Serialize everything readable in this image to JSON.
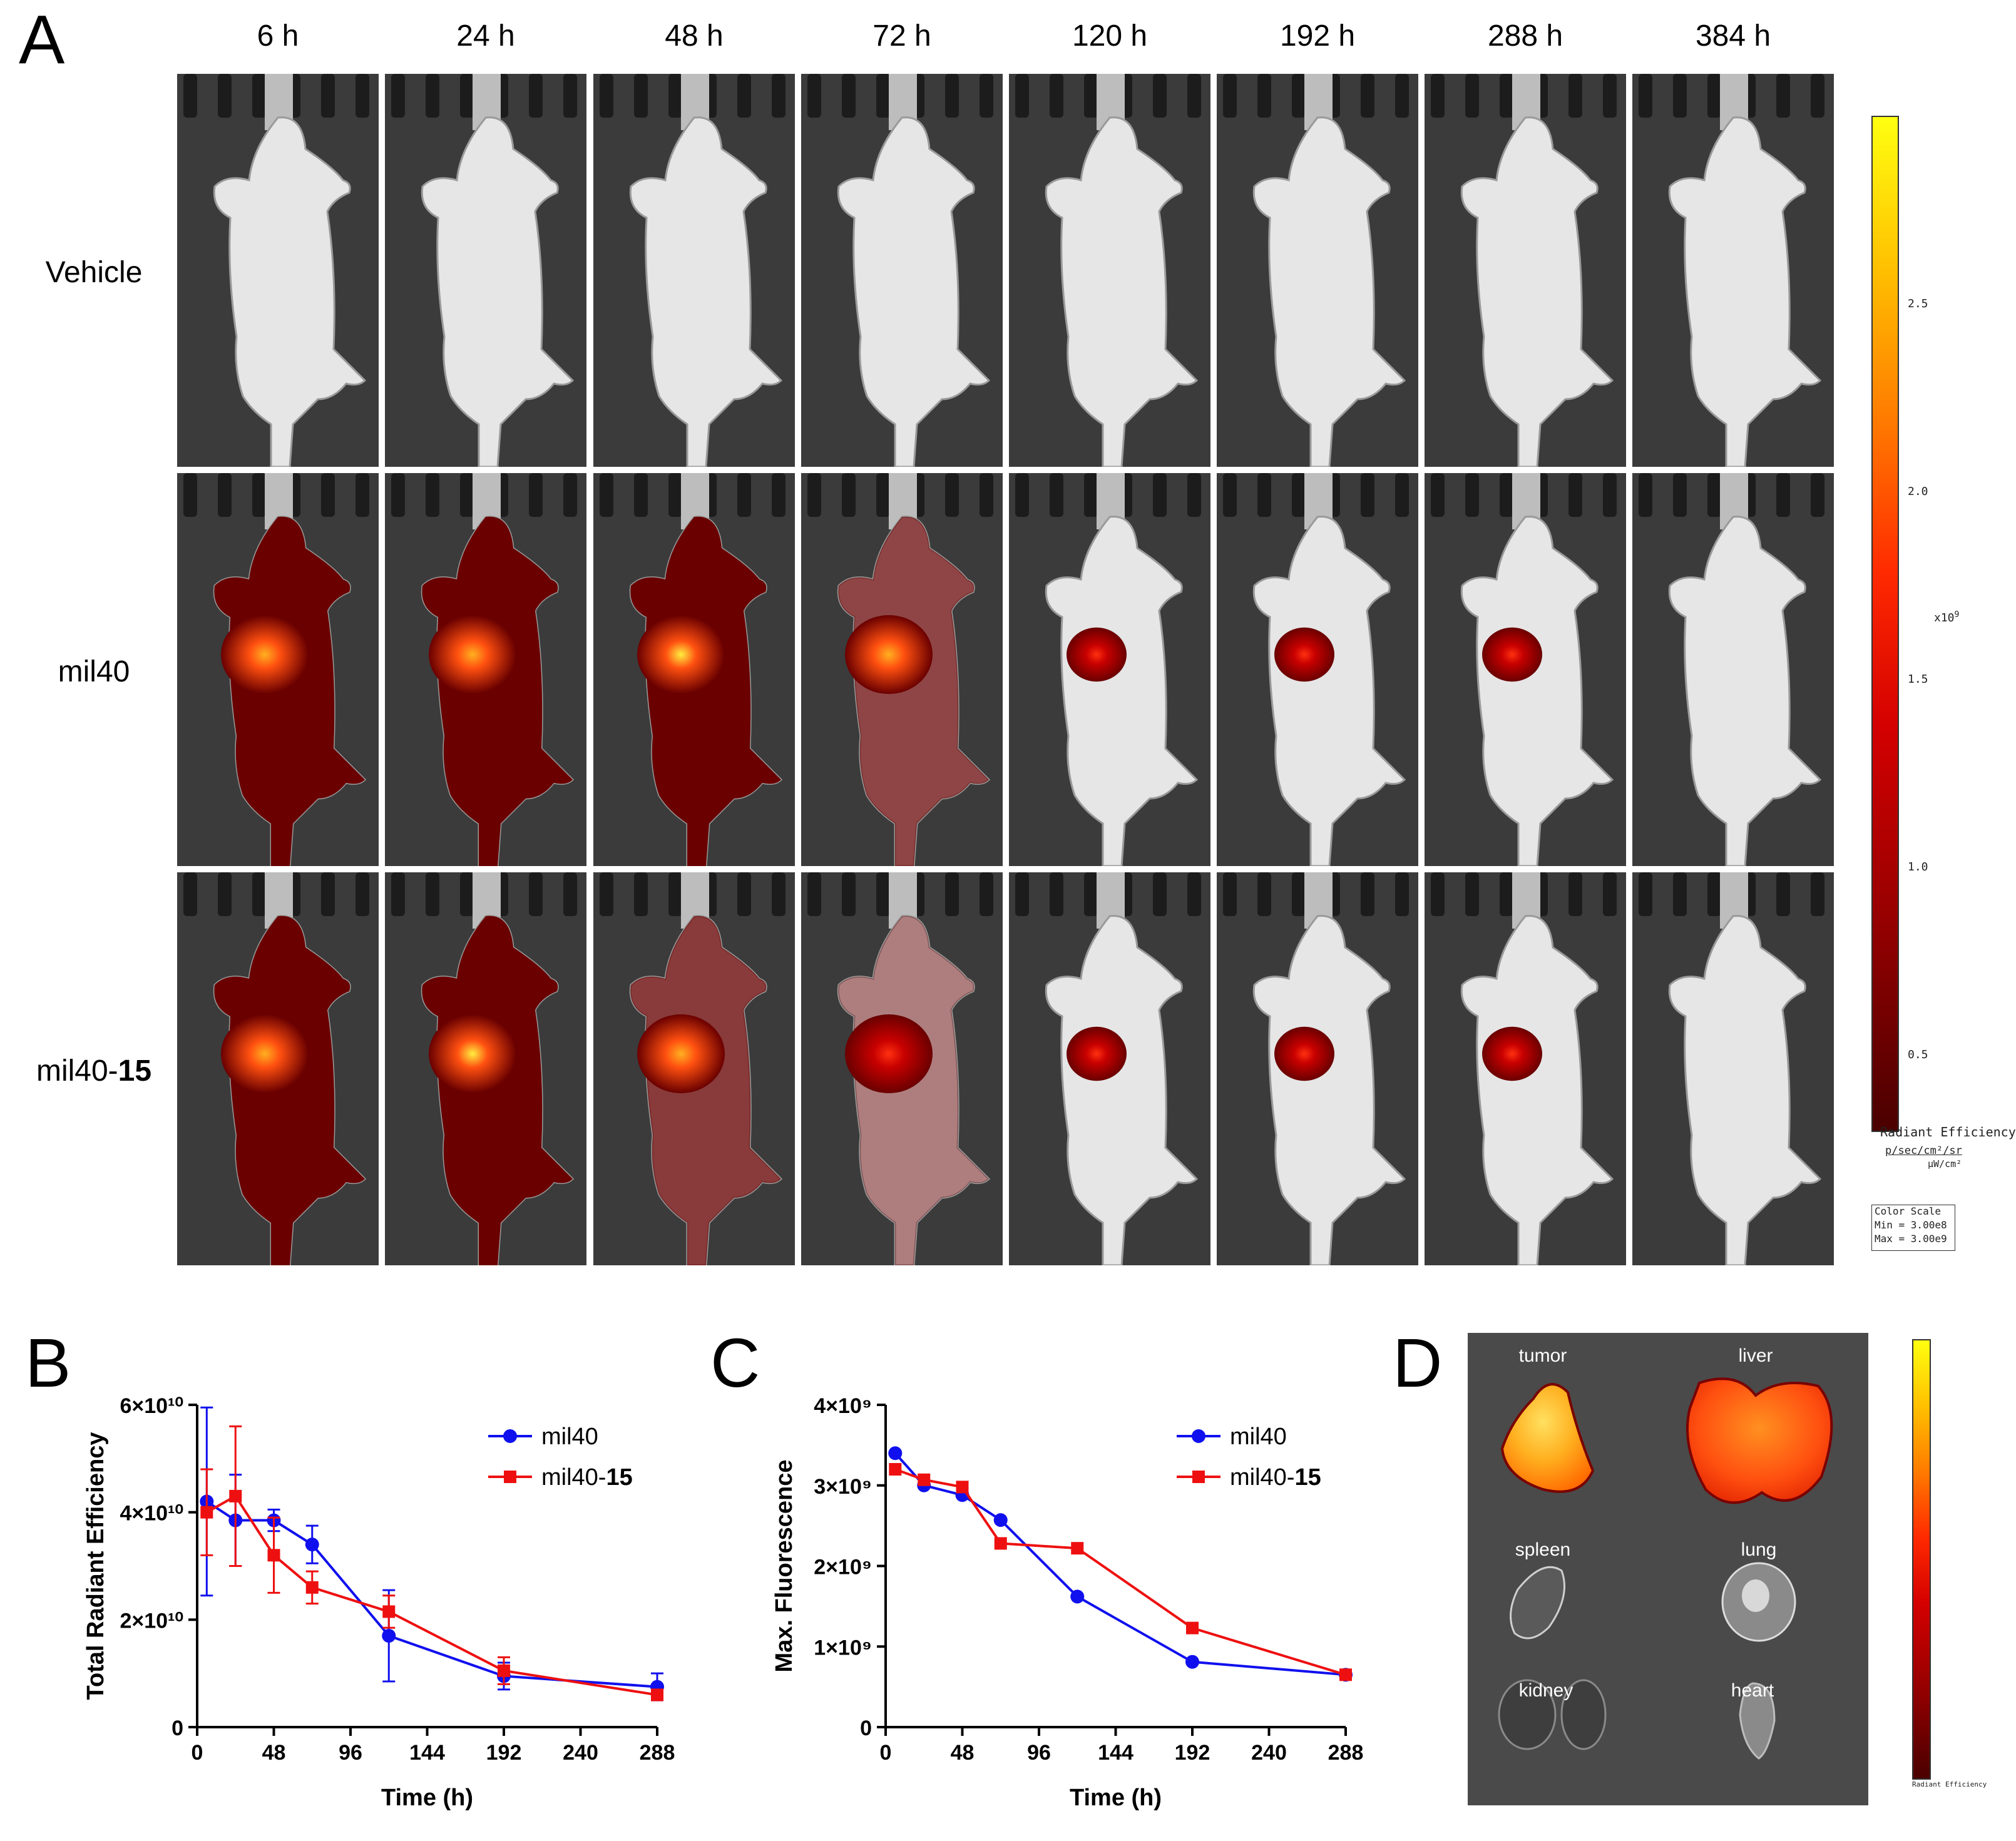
{
  "panel_a": {
    "letter": "A",
    "timepoints": [
      "6 h",
      "24 h",
      "48 h",
      "72 h",
      "120 h",
      "192 h",
      "288 h",
      "384 h"
    ],
    "rows": [
      {
        "label": "Vehicle",
        "label_bold": "",
        "intensity": [
          0,
          0,
          0,
          0,
          0,
          0,
          0,
          0
        ],
        "spread": [
          0,
          0,
          0,
          0,
          0,
          0,
          0,
          0
        ]
      },
      {
        "label": "mil40",
        "label_bold": "",
        "intensity": [
          0.75,
          0.85,
          0.9,
          0.8,
          0.6,
          0.3,
          0.25,
          0
        ],
        "spread": [
          1,
          1,
          1,
          0.7,
          0.25,
          0.15,
          0.12,
          0
        ]
      },
      {
        "label": "mil40-",
        "label_bold": "15",
        "intensity": [
          0.8,
          1.0,
          0.85,
          0.6,
          0.55,
          0.35,
          0.2,
          0
        ],
        "spread": [
          1,
          1,
          0.75,
          0.45,
          0.2,
          0.15,
          0.12,
          0
        ]
      }
    ],
    "colorbar": {
      "ticks": [
        "2.5",
        "2.0",
        "1.5",
        "1.0",
        "0.5"
      ],
      "multiplier": "x10",
      "exponent": "9",
      "title": "Radiant Efficiency",
      "units_num": "p/sec/cm²/sr",
      "units_den": "μW/cm²",
      "scale_title": "Color Scale",
      "scale_min": "Min = 3.00e8",
      "scale_max": "Max = 3.00e9"
    }
  },
  "chart_data": [
    {
      "panel": "B",
      "type": "line",
      "xlabel": "Time (h)",
      "ylabel": "Total Radiant Efficiency",
      "xlim": [
        0,
        288
      ],
      "ylim": [
        0,
        60000000000.0
      ],
      "xticks": [
        "0",
        "48",
        "96",
        "144",
        "192",
        "240",
        "288"
      ],
      "yticks": [
        "0",
        "2×10¹⁰",
        "4×10¹⁰",
        "6×10¹⁰"
      ],
      "series": [
        {
          "name": "mil40",
          "name_bold": "",
          "color": "#1010ee",
          "marker": "circle",
          "x": [
            6,
            24,
            48,
            72,
            120,
            192,
            288
          ],
          "y": [
            42000000000.0,
            38500000000.0,
            38500000000.0,
            34000000000.0,
            17000000000.0,
            9500000000.0,
            7500000000.0
          ],
          "err": [
            17500000000.0,
            8500000000.0,
            2000000000.0,
            3500000000.0,
            8500000000.0,
            2500000000.0,
            2500000000.0
          ]
        },
        {
          "name": "mil40-",
          "name_bold": "15",
          "color": "#ee1010",
          "marker": "square",
          "x": [
            6,
            24,
            48,
            72,
            120,
            192,
            288
          ],
          "y": [
            40000000000.0,
            43000000000.0,
            32000000000.0,
            26000000000.0,
            21500000000.0,
            10500000000.0,
            6000000000.0
          ],
          "err": [
            8000000000.0,
            13000000000.0,
            7000000000.0,
            3000000000.0,
            3000000000.0,
            2500000000.0,
            1000000000.0
          ]
        }
      ]
    },
    {
      "panel": "C",
      "type": "line",
      "xlabel": "Time (h)",
      "ylabel": "Max. Fluorescence",
      "xlim": [
        0,
        288
      ],
      "ylim": [
        0,
        4000000000.0
      ],
      "xticks": [
        "0",
        "48",
        "96",
        "144",
        "192",
        "240",
        "288"
      ],
      "yticks": [
        "0",
        "1×10⁹",
        "2×10⁹",
        "3×10⁹",
        "4×10⁹"
      ],
      "series": [
        {
          "name": "mil40",
          "name_bold": "",
          "color": "#1010ee",
          "marker": "circle",
          "x": [
            6,
            24,
            48,
            72,
            120,
            192,
            288
          ],
          "y": [
            3400000000.0,
            3000000000.0,
            2880000000.0,
            2570000000.0,
            1620000000.0,
            810000000.0,
            650000000.0
          ]
        },
        {
          "name": "mil40-",
          "name_bold": "15",
          "color": "#ee1010",
          "marker": "square",
          "x": [
            6,
            24,
            48,
            72,
            120,
            192,
            288
          ],
          "y": [
            3200000000.0,
            3070000000.0,
            2980000000.0,
            2280000000.0,
            2220000000.0,
            1230000000.0,
            650000000.0
          ]
        }
      ]
    }
  ],
  "panel_b": {
    "letter": "B"
  },
  "panel_c": {
    "letter": "C"
  },
  "panel_d": {
    "letter": "D",
    "organs": [
      "tumor",
      "liver",
      "spleen",
      "lung",
      "kidney",
      "heart"
    ],
    "colorbar_title": "Radiant Efficiency"
  }
}
